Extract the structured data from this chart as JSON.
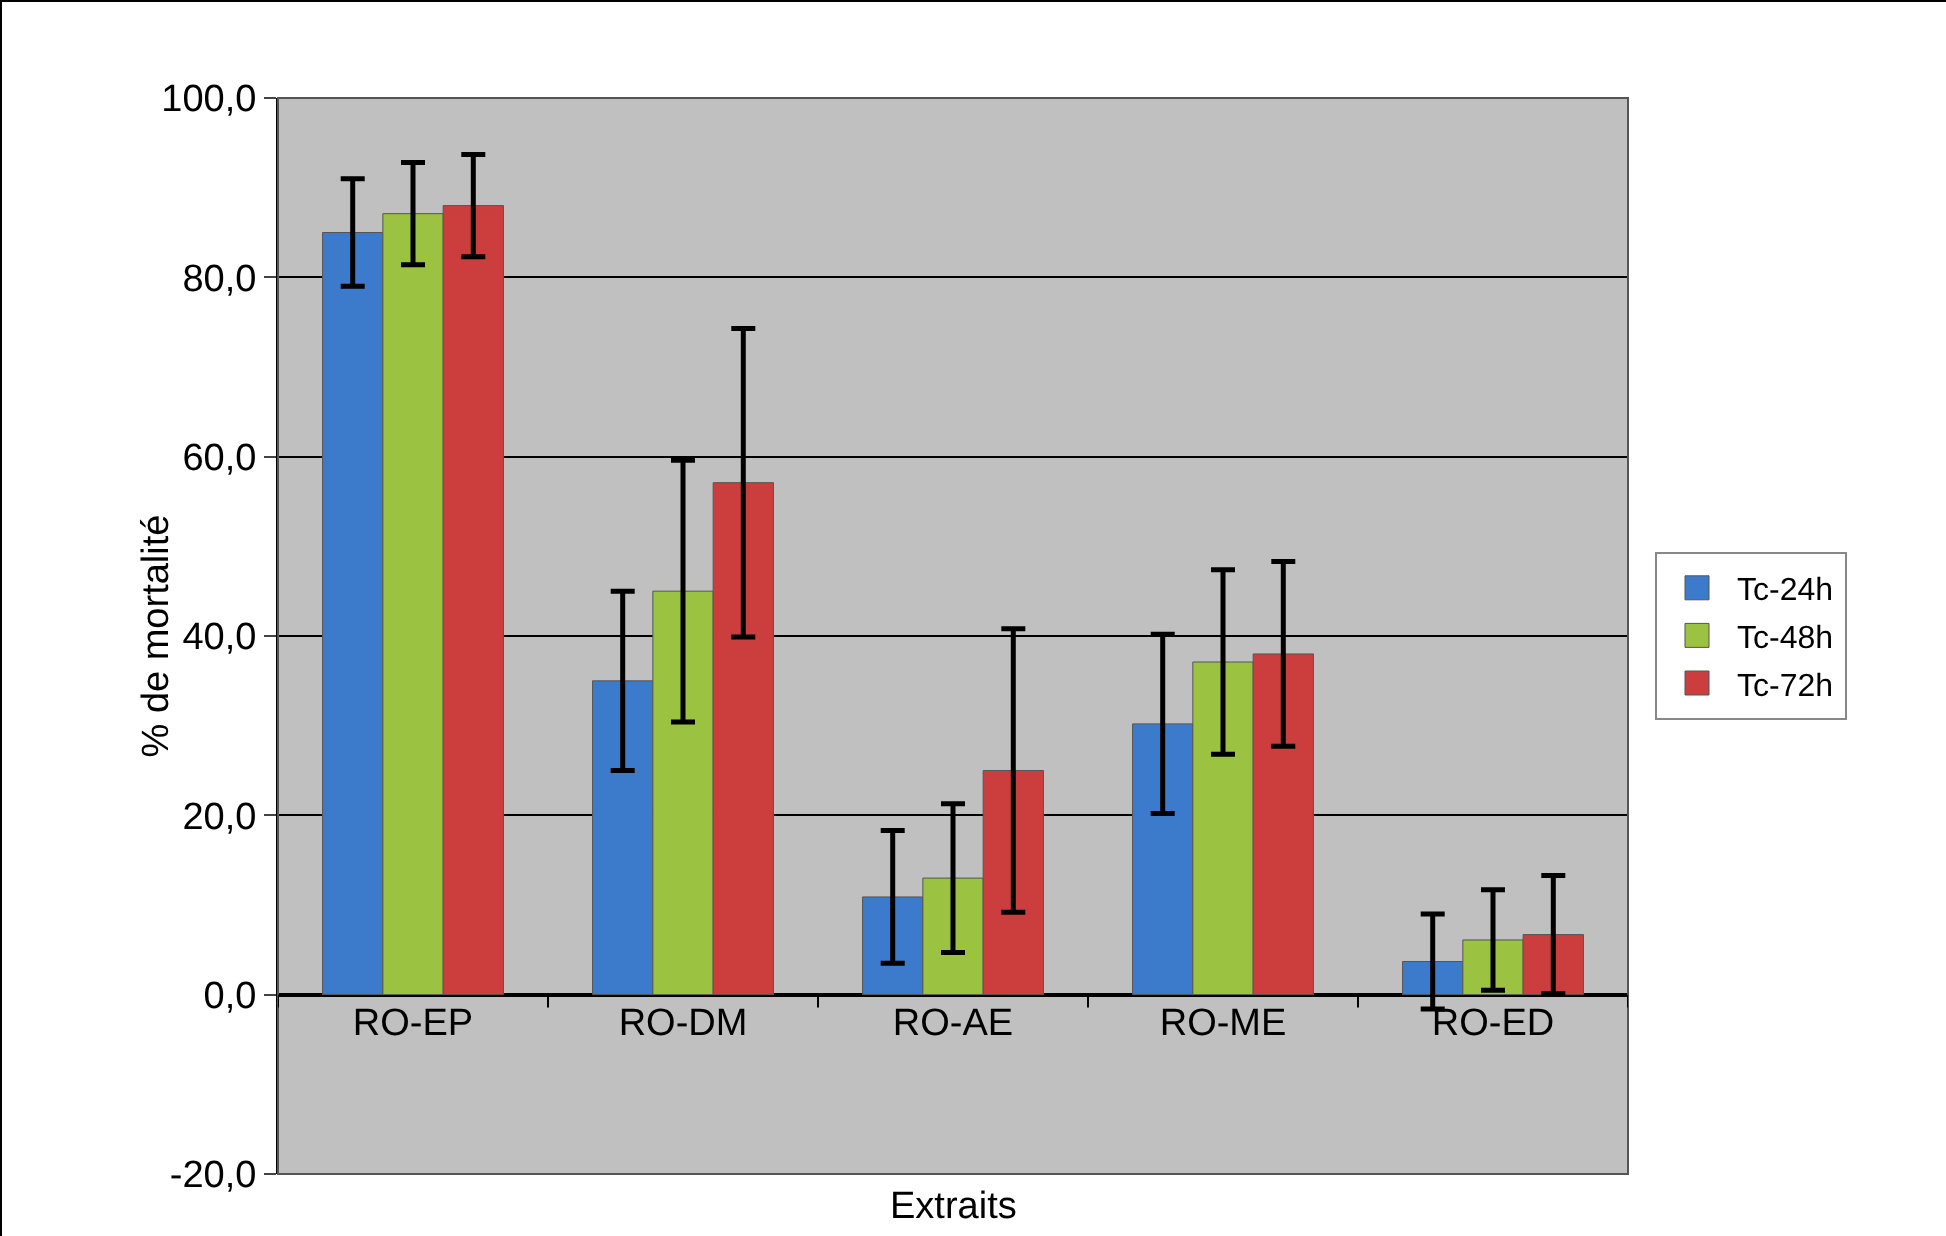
{
  "chart_data": {
    "type": "bar",
    "xlabel": "Extraits",
    "ylabel": "% de mortalité",
    "categories": [
      "RO-EP",
      "RO-DM",
      "RO-AE",
      "RO-ME",
      "RO-ED"
    ],
    "series": [
      {
        "name": "Tc-24h",
        "color": "#3c7acb",
        "values": [
          85.0,
          35.0,
          10.9,
          30.2,
          3.7
        ],
        "errors": [
          6.0,
          10.0,
          7.4,
          10.0,
          5.3
        ]
      },
      {
        "name": "Tc-48h",
        "color": "#9bc241",
        "values": [
          87.1,
          45.0,
          13.0,
          37.1,
          6.1
        ],
        "errors": [
          5.7,
          14.6,
          8.3,
          10.3,
          5.6
        ]
      },
      {
        "name": "Tc-72h",
        "color": "#cc3d3d",
        "values": [
          88.0,
          57.1,
          25.0,
          38.0,
          6.7
        ],
        "errors": [
          5.7,
          17.2,
          15.8,
          10.3,
          6.6
        ]
      }
    ],
    "ylim": [
      -20,
      100
    ],
    "yticks": [
      {
        "value": -20,
        "label": "-20,0"
      },
      {
        "value": 0,
        "label": "0,0"
      },
      {
        "value": 20,
        "label": "20,0"
      },
      {
        "value": 40,
        "label": "40,0"
      },
      {
        "value": 60,
        "label": "60,0"
      },
      {
        "value": 80,
        "label": "80,0"
      },
      {
        "value": 100,
        "label": "100,0"
      }
    ],
    "grid": "y",
    "legend": "right"
  }
}
